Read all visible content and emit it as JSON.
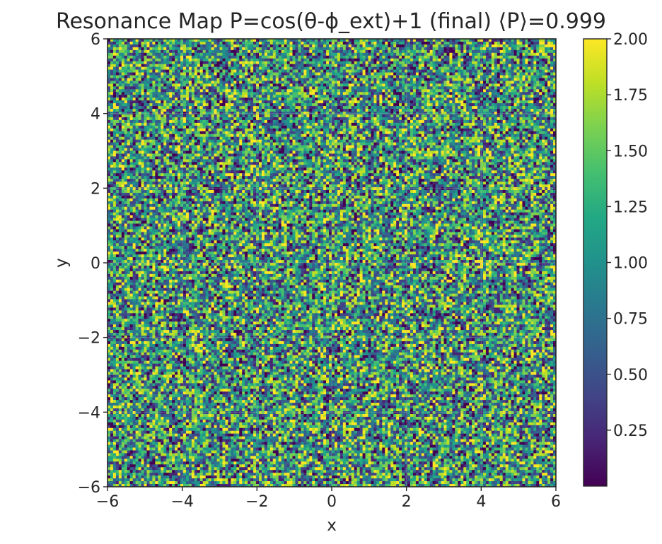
{
  "chart_data": {
    "type": "heatmap",
    "title": "Resonance Map P=cos(θ-ϕ_ext)+1  (final)  ⟨P⟩=0.999",
    "xlabel": "x",
    "ylabel": "y",
    "xlim": [
      -6,
      6
    ],
    "ylim": [
      -6,
      6
    ],
    "x_ticks": [
      -6,
      -4,
      -2,
      0,
      2,
      4,
      6
    ],
    "y_ticks": [
      -6,
      -4,
      -2,
      0,
      2,
      4,
      6
    ],
    "x_tick_labels": [
      "−6",
      "−4",
      "−2",
      "0",
      "2",
      "4",
      "6"
    ],
    "y_tick_labels": [
      "−6",
      "−4",
      "−2",
      "0",
      "2",
      "4",
      "6"
    ],
    "colormap": "viridis",
    "value_range": [
      0,
      2
    ],
    "mean_value": 0.999,
    "field_description": "random noise field of P values, uniformly mixed across the colour range",
    "grid": true,
    "colorbar": {
      "ticks": [
        0.25,
        0.5,
        0.75,
        1.0,
        1.25,
        1.5,
        1.75,
        2.0
      ],
      "tick_labels": [
        "0.25",
        "0.50",
        "0.75",
        "1.00",
        "1.25",
        "1.50",
        "1.75",
        "2.00"
      ],
      "placement": "right"
    },
    "colors": {
      "viridis": [
        "#440154",
        "#482475",
        "#414487",
        "#355f8d",
        "#2a788e",
        "#21918c",
        "#22a884",
        "#44bf70",
        "#7ad151",
        "#bddf26",
        "#fde725"
      ],
      "axis": "#262626",
      "background": "#ffffff"
    }
  }
}
